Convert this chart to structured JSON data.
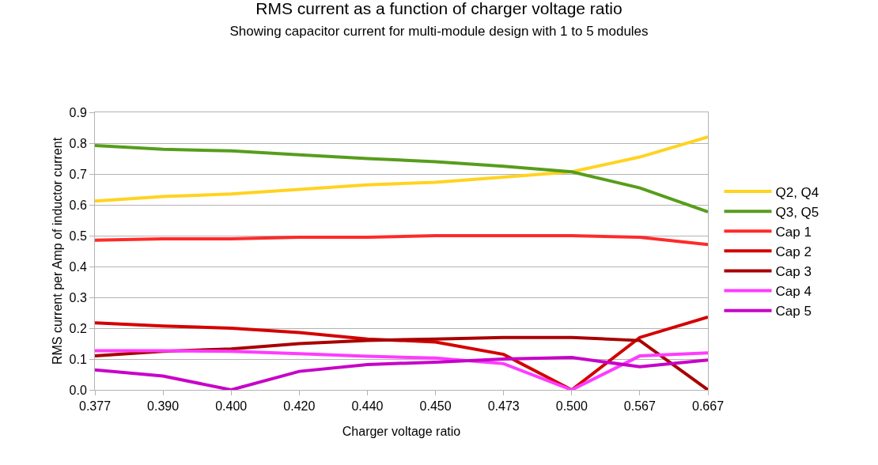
{
  "chart_data": {
    "type": "line",
    "title": "RMS current as a function of charger voltage ratio",
    "subtitle": "Showing capacitor current for multi-module design with 1 to 5 modules",
    "xlabel": "Charger voltage ratio",
    "ylabel": "RMS current per Amp of inductor current",
    "categories": [
      "0.377",
      "0.390",
      "0.400",
      "0.420",
      "0.440",
      "0.450",
      "0.473",
      "0.500",
      "0.567",
      "0.667"
    ],
    "series": [
      {
        "name": "Q2, Q4",
        "color": "#ffd320",
        "values": [
          0.612,
          0.627,
          0.635,
          0.65,
          0.665,
          0.673,
          0.69,
          0.707,
          0.755,
          0.82
        ]
      },
      {
        "name": "Q3, Q5",
        "color": "#579d1c",
        "values": [
          0.792,
          0.78,
          0.775,
          0.762,
          0.75,
          0.74,
          0.725,
          0.707,
          0.655,
          0.577
        ]
      },
      {
        "name": "Cap 1",
        "color": "#ff2a2a",
        "values": [
          0.485,
          0.49,
          0.49,
          0.495,
          0.495,
          0.5,
          0.5,
          0.5,
          0.495,
          0.471
        ]
      },
      {
        "name": "Cap 2",
        "color": "#d40000",
        "values": [
          0.217,
          0.207,
          0.2,
          0.186,
          0.165,
          0.155,
          0.115,
          0.0,
          0.17,
          0.236
        ]
      },
      {
        "name": "Cap 3",
        "color": "#a80000",
        "values": [
          0.11,
          0.125,
          0.133,
          0.15,
          0.16,
          0.165,
          0.17,
          0.17,
          0.16,
          0.0
        ]
      },
      {
        "name": "Cap 4",
        "color": "#ff3bff",
        "values": [
          0.127,
          0.127,
          0.125,
          0.117,
          0.109,
          0.103,
          0.085,
          0.0,
          0.11,
          0.12
        ]
      },
      {
        "name": "Cap 5",
        "color": "#c800c8",
        "values": [
          0.065,
          0.045,
          0.0,
          0.06,
          0.082,
          0.09,
          0.1,
          0.105,
          0.075,
          0.097
        ]
      }
    ],
    "ylim": [
      0,
      0.9
    ],
    "yticks": [
      {
        "value": 0,
        "label": "0.0"
      },
      {
        "value": 0.1,
        "label": "0.1"
      },
      {
        "value": 0.2,
        "label": "0.2"
      },
      {
        "value": 0.3,
        "label": "0.3"
      },
      {
        "value": 0.4,
        "label": "0.4"
      },
      {
        "value": 0.5,
        "label": "0.5"
      },
      {
        "value": 0.6,
        "label": "0.6"
      },
      {
        "value": 0.7,
        "label": "0.7"
      },
      {
        "value": 0.8,
        "label": "0.8"
      },
      {
        "value": 0.9,
        "label": "0.9"
      }
    ],
    "grid": "y",
    "legend": "right",
    "marker": "none",
    "line_style": "solid"
  }
}
